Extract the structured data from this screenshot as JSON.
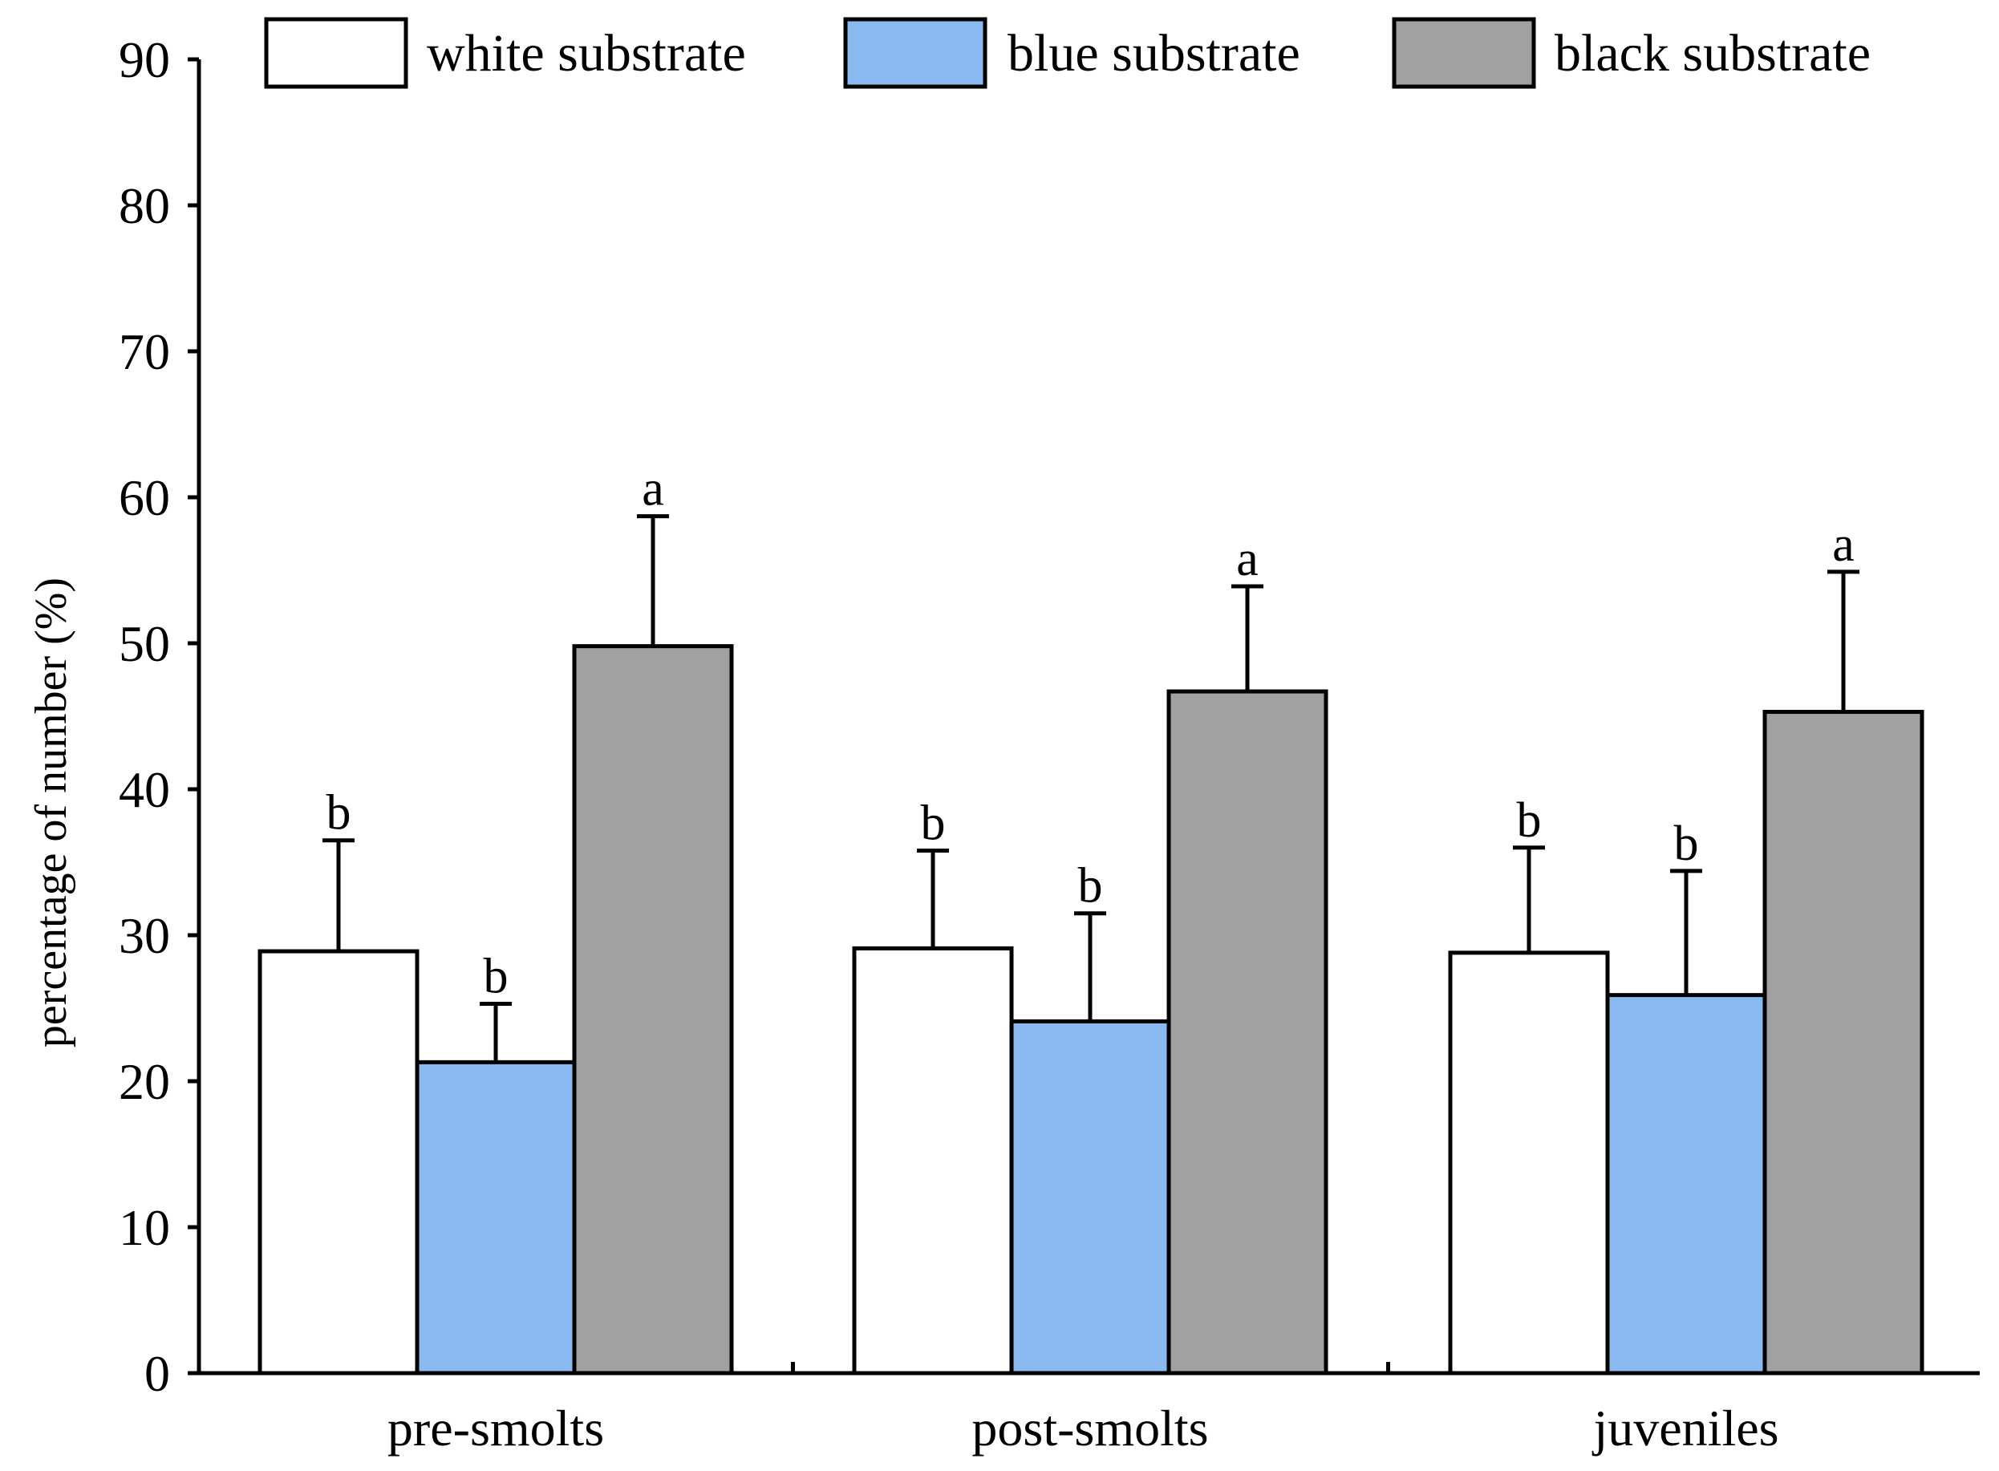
{
  "chart_data": {
    "type": "bar",
    "title": "",
    "xlabel": "",
    "ylabel": "percentage of number (%)",
    "ylim": [
      0,
      90
    ],
    "yticks": [
      0,
      10,
      20,
      30,
      40,
      50,
      60,
      70,
      80,
      90
    ],
    "grid": false,
    "legend_position": "top",
    "categories": [
      "pre-smolts",
      "post-smolts",
      "juveniles"
    ],
    "series": [
      {
        "name": "white substrate",
        "color": "#ffffff",
        "values": [
          28.9,
          29.1,
          28.8
        ],
        "errors": [
          7.6,
          6.7,
          7.2
        ],
        "significance": [
          "b",
          "b",
          "b"
        ]
      },
      {
        "name": "blue substrate",
        "color": "#8bbaf3",
        "values": [
          21.3,
          24.1,
          25.9
        ],
        "errors": [
          4.0,
          7.4,
          8.5
        ],
        "significance": [
          "b",
          "b",
          "b"
        ]
      },
      {
        "name": "black substrate",
        "color": "#a1a1a1",
        "values": [
          49.8,
          46.7,
          45.3
        ],
        "errors": [
          8.9,
          7.2,
          9.6
        ],
        "significance": [
          "a",
          "a",
          "a"
        ]
      }
    ]
  }
}
